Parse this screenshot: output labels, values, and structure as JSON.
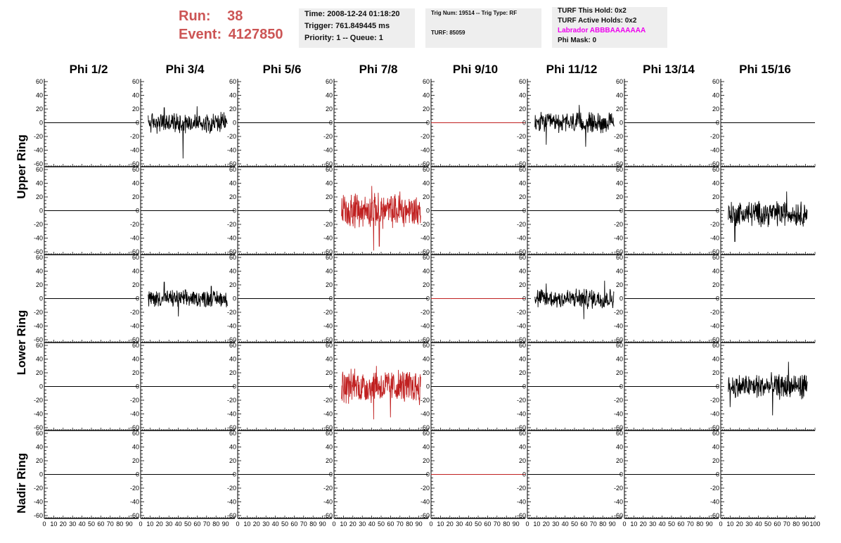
{
  "header": {
    "run_label": "Run:",
    "run_value": "38",
    "event_label": "Event:",
    "event_value": "4127850"
  },
  "info_box_1": {
    "line1": "Time: 2008-12-24 01:18:20",
    "line2": "Trigger: 761.849445 ms",
    "line3": "Priority: 1 -- Queue: 1"
  },
  "info_box_2": {
    "line1": "Trig Num: 19514 -- Trig Type: RF",
    "line2": "TURF: 85059"
  },
  "info_box_3": {
    "line1": "TURF This Hold: 0x2",
    "line2": "TURF Active Holds: 0x2",
    "line3": "Labrador ABBBAAAAAAA",
    "line4": "Phi Mask: 0",
    "labrador_color": "#ee00ee"
  },
  "chart_data": {
    "type": "line",
    "column_titles": [
      "Phi 1/2",
      "Phi 3/4",
      "Phi 5/6",
      "Phi 7/8",
      "Phi 9/10",
      "Phi 11/12",
      "Phi 13/14",
      "Phi 15/16"
    ],
    "ring_titles": [
      "Upper Ring",
      "Lower Ring",
      "Nadir Ring"
    ],
    "ylim": [
      -60,
      60
    ],
    "xlim": [
      0,
      100
    ],
    "y_ticks": [
      60,
      40,
      20,
      0,
      -20,
      -40,
      -60
    ],
    "x_tick_labels": [
      "0",
      "10",
      "20",
      "30",
      "40",
      "50",
      "60",
      "70",
      "80",
      "90",
      "100"
    ],
    "colors": {
      "black": "#000000",
      "red": "#c02020"
    },
    "panels": [
      {
        "row": 0,
        "col": 0,
        "state": "empty"
      },
      {
        "row": 0,
        "col": 1,
        "state": "waveform",
        "color": "black",
        "amplitude": 12,
        "peaks": [
          [
            45,
            -52
          ],
          [
            60,
            24
          ],
          [
            25,
            22
          ]
        ]
      },
      {
        "row": 0,
        "col": 2,
        "state": "empty"
      },
      {
        "row": 0,
        "col": 3,
        "state": "empty"
      },
      {
        "row": 0,
        "col": 4,
        "state": "flat",
        "color": "red"
      },
      {
        "row": 0,
        "col": 5,
        "state": "waveform",
        "color": "black",
        "amplitude": 12,
        "peaks": [
          [
            55,
            26
          ],
          [
            62,
            -35
          ],
          [
            20,
            -32
          ]
        ]
      },
      {
        "row": 0,
        "col": 6,
        "state": "empty"
      },
      {
        "row": 0,
        "col": 7,
        "state": "empty"
      },
      {
        "row": 1,
        "col": 0,
        "state": "empty"
      },
      {
        "row": 1,
        "col": 1,
        "state": "empty"
      },
      {
        "row": 1,
        "col": 2,
        "state": "empty"
      },
      {
        "row": 1,
        "col": 3,
        "state": "waveform",
        "color": "red",
        "amplitude": 20,
        "peaks": [
          [
            40,
            36
          ],
          [
            42,
            -58
          ],
          [
            48,
            -52
          ],
          [
            70,
            28
          ]
        ]
      },
      {
        "row": 1,
        "col": 4,
        "state": "empty"
      },
      {
        "row": 1,
        "col": 5,
        "state": "empty"
      },
      {
        "row": 1,
        "col": 6,
        "state": "empty"
      },
      {
        "row": 1,
        "col": 7,
        "state": "waveform",
        "color": "black",
        "amplitude": 15,
        "offset": -4,
        "peaks": [
          [
            95,
            32
          ],
          [
            15,
            -45
          ],
          [
            70,
            28
          ]
        ]
      },
      {
        "row": 2,
        "col": 0,
        "state": "empty"
      },
      {
        "row": 2,
        "col": 1,
        "state": "waveform",
        "color": "black",
        "amplitude": 10,
        "peaks": [
          [
            25,
            24
          ],
          [
            40,
            -26
          ],
          [
            75,
            18
          ]
        ]
      },
      {
        "row": 2,
        "col": 2,
        "state": "empty"
      },
      {
        "row": 2,
        "col": 3,
        "state": "empty"
      },
      {
        "row": 2,
        "col": 4,
        "state": "flat",
        "color": "red"
      },
      {
        "row": 2,
        "col": 5,
        "state": "waveform",
        "color": "black",
        "amplitude": 12,
        "peaks": [
          [
            82,
            26
          ],
          [
            60,
            -30
          ],
          [
            20,
            22
          ]
        ]
      },
      {
        "row": 2,
        "col": 6,
        "state": "empty"
      },
      {
        "row": 2,
        "col": 7,
        "state": "empty"
      },
      {
        "row": 3,
        "col": 0,
        "state": "empty"
      },
      {
        "row": 3,
        "col": 1,
        "state": "empty"
      },
      {
        "row": 3,
        "col": 2,
        "state": "empty"
      },
      {
        "row": 3,
        "col": 3,
        "state": "waveform",
        "color": "red",
        "amplitude": 20,
        "peaks": [
          [
            45,
            30
          ],
          [
            42,
            -48
          ],
          [
            60,
            -45
          ],
          [
            22,
            26
          ]
        ]
      },
      {
        "row": 3,
        "col": 4,
        "state": "empty"
      },
      {
        "row": 3,
        "col": 5,
        "state": "empty"
      },
      {
        "row": 3,
        "col": 6,
        "state": "empty"
      },
      {
        "row": 3,
        "col": 7,
        "state": "waveform",
        "color": "black",
        "amplitude": 15,
        "peaks": [
          [
            72,
            36
          ],
          [
            10,
            -30
          ],
          [
            55,
            -42
          ]
        ]
      },
      {
        "row": 4,
        "col": 0,
        "state": "empty"
      },
      {
        "row": 4,
        "col": 1,
        "state": "empty"
      },
      {
        "row": 4,
        "col": 2,
        "state": "empty"
      },
      {
        "row": 4,
        "col": 3,
        "state": "empty"
      },
      {
        "row": 4,
        "col": 4,
        "state": "flat",
        "color": "red"
      },
      {
        "row": 4,
        "col": 5,
        "state": "empty"
      },
      {
        "row": 4,
        "col": 6,
        "state": "empty"
      },
      {
        "row": 4,
        "col": 7,
        "state": "empty"
      }
    ]
  }
}
